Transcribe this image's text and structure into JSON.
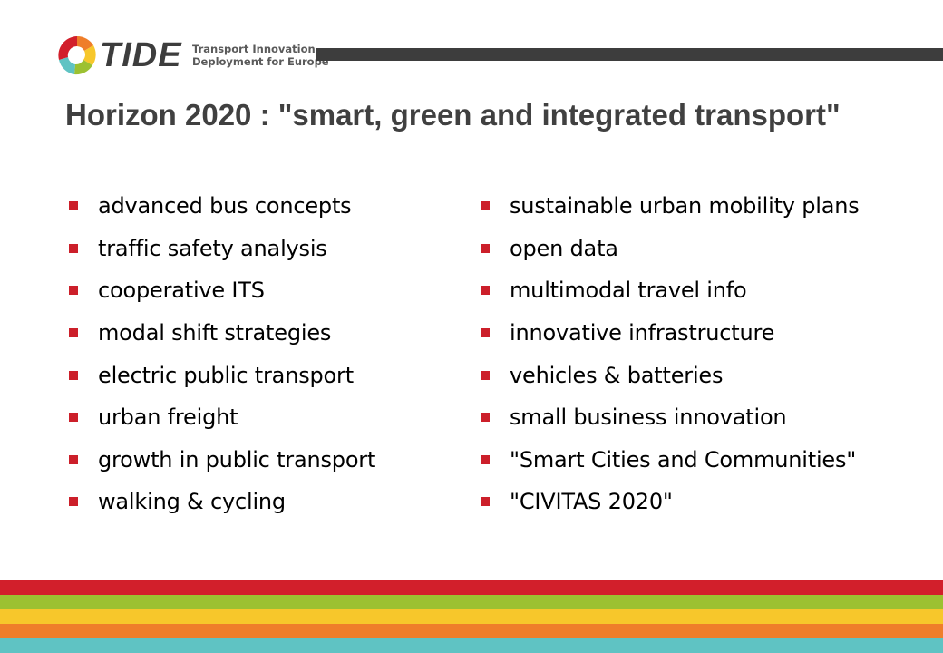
{
  "header": {
    "logo_word": "TIDE",
    "tagline_line1": "Transport Innovation",
    "tagline_line2": "Deployment for Europe",
    "logo_icon": "tide-logo-icon"
  },
  "title": "Horizon 2020 : \"smart, green and integrated transport\"",
  "left_items": [
    "advanced bus concepts",
    "traffic safety analysis",
    "cooperative ITS",
    "modal shift strategies",
    "electric public transport",
    "urban freight",
    "growth in public transport",
    "walking & cycling"
  ],
  "right_items": [
    "sustainable urban mobility plans",
    "open data",
    "multimodal travel info",
    "innovative infrastructure",
    "vehicles & batteries",
    "small business innovation",
    "\"Smart Cities and Communities\"",
    "\"CIVITAS 2020\""
  ],
  "colors": {
    "text": "#000000",
    "title": "#404040",
    "logo_word": "#3d3d3d",
    "tagline": "#5a5a5a",
    "header_bar": "#3d3d3d",
    "bullet": "#cc1f2a",
    "stripe_red": "#d21f2b",
    "stripe_green": "#9cc131",
    "stripe_yellow": "#f7c72b",
    "stripe_orange": "#ef7e2a",
    "stripe_teal": "#5fc3c3"
  }
}
